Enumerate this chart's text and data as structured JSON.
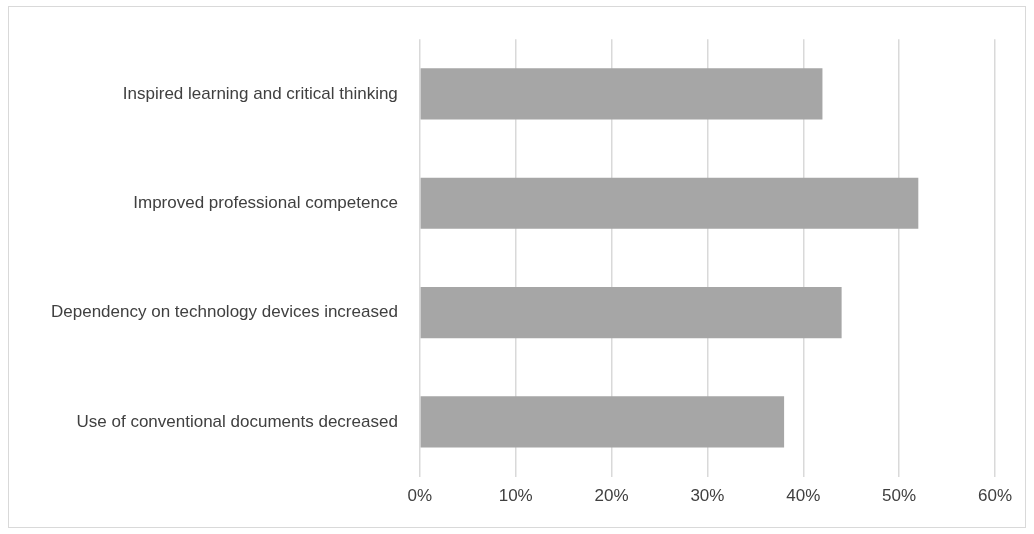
{
  "chart_data": {
    "type": "bar",
    "orientation": "horizontal",
    "categories": [
      "Inspired learning and critical thinking",
      "Improved professional competence",
      "Dependency on technology devices increased",
      "Use of conventional documents decreased"
    ],
    "values": [
      42,
      52,
      44,
      38
    ],
    "color": "#a6a6a6",
    "xlim": [
      0,
      60
    ],
    "xticks": [
      {
        "value": 0,
        "label": "0%"
      },
      {
        "value": 10,
        "label": "10%"
      },
      {
        "value": 20,
        "label": "20%"
      },
      {
        "value": 30,
        "label": "30%"
      },
      {
        "value": 40,
        "label": "40%"
      },
      {
        "value": 50,
        "label": "50%"
      },
      {
        "value": 60,
        "label": "60%"
      }
    ],
    "grid": "x",
    "legend": false
  }
}
